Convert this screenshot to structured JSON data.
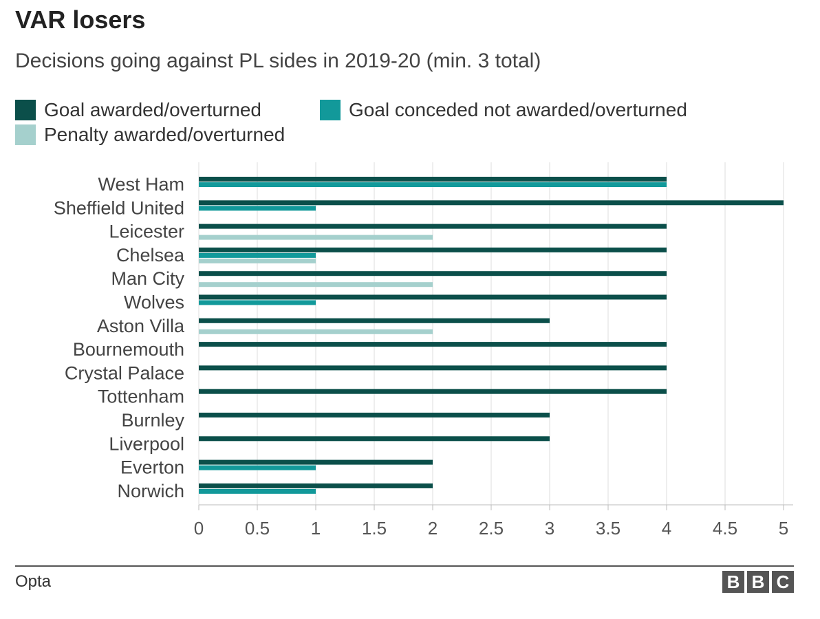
{
  "header": {
    "title": "VAR losers",
    "subtitle": "Decisions going against PL sides in 2019-20 (min. 3 total)"
  },
  "footer": {
    "source": "Opta",
    "logo_letters": [
      "B",
      "B",
      "C"
    ]
  },
  "colors": {
    "goal_awarded": "#0b4f4a",
    "goal_conceded": "#12999a",
    "penalty": "#a5d0cd",
    "grid": "#dddddd"
  },
  "chart_data": {
    "type": "bar",
    "orientation": "horizontal",
    "title": "VAR losers",
    "subtitle": "Decisions going against PL sides in 2019-20 (min. 3 total)",
    "xlabel": "",
    "ylabel": "",
    "xlim": [
      0,
      5
    ],
    "xticks": [
      "0",
      "0.5",
      "1",
      "1.5",
      "2",
      "2.5",
      "3",
      "3.5",
      "4",
      "4.5",
      "5"
    ],
    "grid": true,
    "legend_position": "top",
    "categories": [
      "West Ham",
      "Sheffield United",
      "Leicester",
      "Chelsea",
      "Man City",
      "Wolves",
      "Aston Villa",
      "Bournemouth",
      "Crystal Palace",
      "Tottenham",
      "Burnley",
      "Liverpool",
      "Everton",
      "Norwich"
    ],
    "series": [
      {
        "name": "Goal awarded/overturned",
        "color": "#0b4f4a",
        "values": [
          4,
          5,
          4,
          4,
          4,
          4,
          3,
          4,
          4,
          4,
          3,
          3,
          2,
          2
        ]
      },
      {
        "name": "Goal conceded not awarded/overturned",
        "color": "#12999a",
        "values": [
          4,
          1,
          0,
          1,
          0,
          1,
          0,
          0,
          0,
          0,
          0,
          0,
          1,
          1
        ]
      },
      {
        "name": "Penalty awarded/overturned",
        "color": "#a5d0cd",
        "values": [
          0,
          0,
          2,
          1,
          2,
          0,
          2,
          0,
          0,
          0,
          0,
          0,
          0,
          0
        ]
      }
    ]
  }
}
